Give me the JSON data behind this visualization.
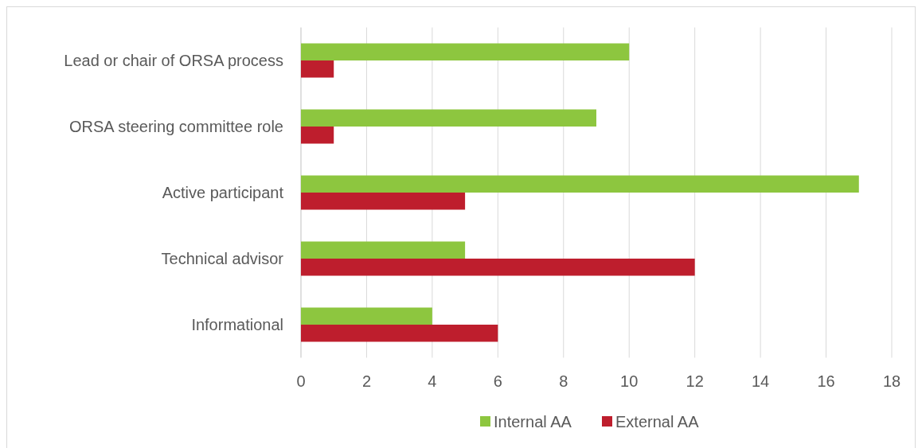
{
  "chart_data": {
    "type": "bar",
    "orientation": "horizontal",
    "categories": [
      "Lead or chair of ORSA process",
      "ORSA steering committee role",
      "Active participant",
      "Technical advisor",
      "Informational"
    ],
    "series": [
      {
        "name": "Internal AA",
        "color": "#8dc63f",
        "values": [
          10,
          9,
          17,
          5,
          4
        ]
      },
      {
        "name": "External AA",
        "color": "#be1e2d",
        "values": [
          1,
          1,
          5,
          12,
          6
        ]
      }
    ],
    "xlim": [
      0,
      18
    ],
    "xticks": [
      0,
      2,
      4,
      6,
      8,
      10,
      12,
      14,
      16,
      18
    ],
    "grid": "x",
    "legend": "bottom"
  }
}
